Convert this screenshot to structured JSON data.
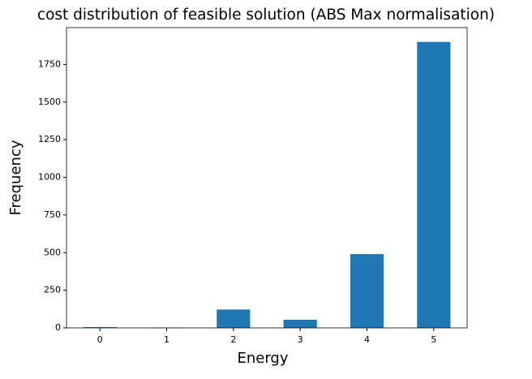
{
  "chart_data": {
    "type": "bar",
    "title": "cost distribution of feasible solution (ABS Max normalisation)",
    "x_label": "Energy",
    "y_label": "Frequency",
    "x": [
      0,
      1,
      2,
      3,
      4,
      5
    ],
    "values": [
      5,
      1,
      122,
      54,
      490,
      1900
    ],
    "color": "#1f77b4",
    "xlim": [
      -0.5,
      5.5
    ],
    "xticks": [
      0,
      1,
      2,
      3,
      4,
      5
    ],
    "ylim": [
      0,
      1995
    ],
    "yticks": [
      0,
      250,
      500,
      750,
      1000,
      1250,
      1500,
      1750
    ]
  }
}
